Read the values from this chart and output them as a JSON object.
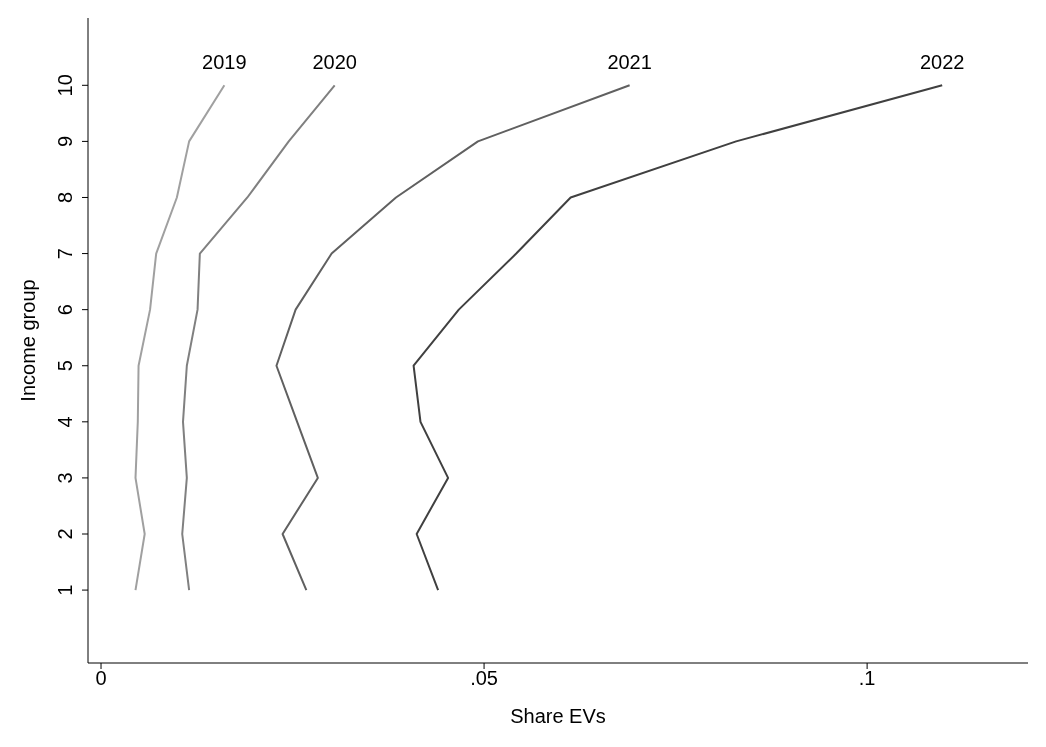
{
  "chart_data": {
    "type": "line",
    "xlabel": "Share EVs",
    "ylabel": "Income group",
    "xlim": [
      -0.0017,
      0.121
    ],
    "xticks": [
      0,
      {
        "value": 0.05,
        "label": ".05"
      },
      {
        "value": 0.1,
        "label": ".1"
      }
    ],
    "ylim": [
      -0.3,
      11.2
    ],
    "yticks": [
      1,
      2,
      3,
      4,
      5,
      6,
      7,
      8,
      9,
      10
    ],
    "grid": false,
    "legend": false,
    "marker": "none",
    "line_style": "solid",
    "series": [
      {
        "name": "2019",
        "color": "#a0a0a0",
        "x": [
          0.0045,
          0.0057,
          0.0045,
          0.0048,
          0.0049,
          0.0064,
          0.0072,
          0.0099,
          0.0115,
          0.0161
        ],
        "values": [
          1,
          2,
          3,
          4,
          5,
          6,
          7,
          8,
          9,
          10
        ]
      },
      {
        "name": "2020",
        "color": "#808080",
        "x": [
          0.0115,
          0.0106,
          0.0112,
          0.0107,
          0.0112,
          0.0126,
          0.0129,
          0.0191,
          0.0245,
          0.0305
        ],
        "values": [
          1,
          2,
          3,
          4,
          5,
          6,
          7,
          8,
          9,
          10
        ]
      },
      {
        "name": "2021",
        "color": "#606060",
        "x": [
          0.0268,
          0.0237,
          0.0283,
          0.0256,
          0.0229,
          0.0254,
          0.0301,
          0.0385,
          0.0492,
          0.069
        ],
        "values": [
          1,
          2,
          3,
          4,
          5,
          6,
          7,
          8,
          9,
          10
        ]
      },
      {
        "name": "2022",
        "color": "#404040",
        "x": [
          0.044,
          0.0412,
          0.0453,
          0.0417,
          0.0408,
          0.0467,
          0.0542,
          0.0613,
          0.0829,
          0.1098
        ],
        "values": [
          1,
          2,
          3,
          4,
          5,
          6,
          7,
          8,
          9,
          10
        ]
      }
    ]
  }
}
